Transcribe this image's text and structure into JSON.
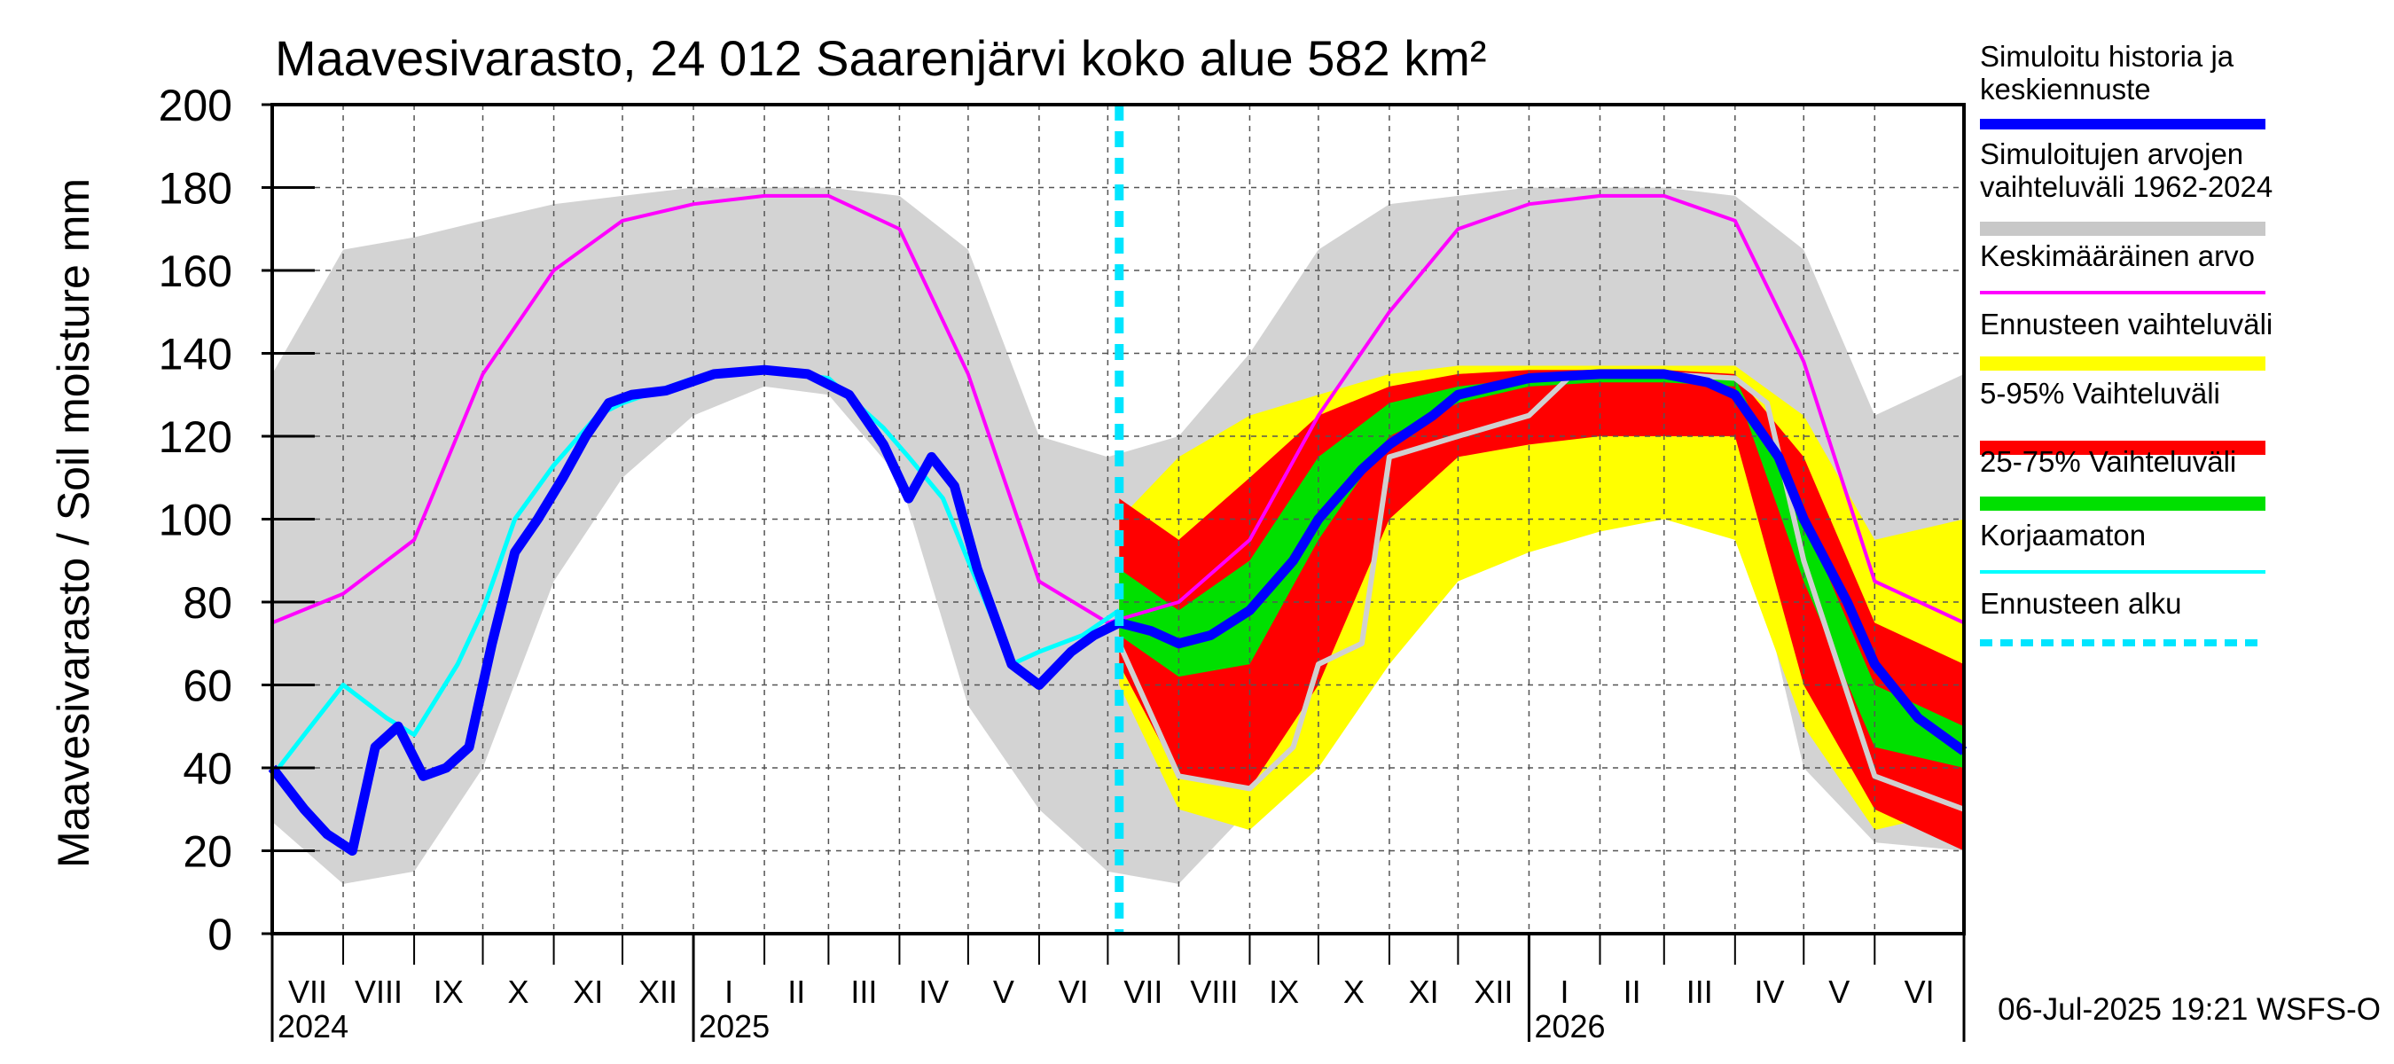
{
  "chart_data": {
    "type": "area",
    "title": "Maavesivarasto, 24 012 Saarenjärvi koko alue 582 km²",
    "ylabel": "Maavesivarasto / Soil moisture   mm",
    "xlabel": "",
    "ylim": [
      0,
      200
    ],
    "yticks": [
      0,
      20,
      40,
      60,
      80,
      100,
      120,
      140,
      160,
      180,
      200
    ],
    "x_range": [
      "2024-07-01",
      "2026-07-10"
    ],
    "grid": true,
    "legend_position": "right",
    "month_labels": [
      {
        "label": "VII",
        "date": "2024-07-01"
      },
      {
        "label": "VIII",
        "date": "2024-08-01"
      },
      {
        "label": "IX",
        "date": "2024-09-01"
      },
      {
        "label": "X",
        "date": "2024-10-01"
      },
      {
        "label": "XI",
        "date": "2024-11-01"
      },
      {
        "label": "XII",
        "date": "2024-12-01"
      },
      {
        "label": "I",
        "date": "2025-01-01"
      },
      {
        "label": "II",
        "date": "2025-02-01"
      },
      {
        "label": "III",
        "date": "2025-03-01"
      },
      {
        "label": "IV",
        "date": "2025-04-01"
      },
      {
        "label": "V",
        "date": "2025-05-01"
      },
      {
        "label": "VI",
        "date": "2025-06-01"
      },
      {
        "label": "VII",
        "date": "2025-07-01"
      },
      {
        "label": "VIII",
        "date": "2025-08-01"
      },
      {
        "label": "IX",
        "date": "2025-09-01"
      },
      {
        "label": "X",
        "date": "2025-10-01"
      },
      {
        "label": "XI",
        "date": "2025-11-01"
      },
      {
        "label": "XII",
        "date": "2025-12-01"
      },
      {
        "label": "I",
        "date": "2026-01-01"
      },
      {
        "label": "II",
        "date": "2026-02-01"
      },
      {
        "label": "III",
        "date": "2026-03-01"
      },
      {
        "label": "IV",
        "date": "2026-04-01"
      },
      {
        "label": "V",
        "date": "2026-05-01"
      },
      {
        "label": "VI",
        "date": "2026-06-01"
      }
    ],
    "year_labels": [
      {
        "label": "2024",
        "date": "2024-07-01"
      },
      {
        "label": "2025",
        "date": "2025-01-01"
      },
      {
        "label": "2026",
        "date": "2026-01-01"
      }
    ],
    "forecast_start": "2025-07-06",
    "footer": "06-Jul-2025 19:21 WSFS-O",
    "legend": [
      {
        "label": "Simuloitu historia ja\nkeskiennuste",
        "color": "#0000ff",
        "style": "line"
      },
      {
        "label": "Simuloitujen arvojen\nvaihteluväli 1962-2024",
        "color": "#c8c8c8",
        "style": "band"
      },
      {
        "label": "Keskimääräinen arvo",
        "color": "#ff00ff",
        "style": "line"
      },
      {
        "label": "Ennusteen vaihteluväli",
        "color": "#ffff00",
        "style": "band"
      },
      {
        "label": "5-95% Vaihteluväli",
        "color": "#ff0000",
        "style": "band"
      },
      {
        "label": "25-75% Vaihteluväli",
        "color": "#00e000",
        "style": "band"
      },
      {
        "label": "Korjaamaton",
        "color": "#00ffff",
        "style": "line"
      },
      {
        "label": "Ennusteen alku",
        "color": "#00e5ff",
        "style": "dashed"
      }
    ],
    "series": [
      {
        "name": "Simuloitujen arvojen vaihteluväli 1962-2024",
        "kind": "band",
        "color": "#d3d3d3",
        "x": [
          "2024-07-01",
          "2024-08-01",
          "2024-09-01",
          "2024-10-01",
          "2024-11-01",
          "2024-12-01",
          "2025-01-01",
          "2025-02-01",
          "2025-03-01",
          "2025-04-01",
          "2025-05-01",
          "2025-06-01",
          "2025-07-01",
          "2025-08-01",
          "2025-09-01",
          "2025-10-01",
          "2025-11-01",
          "2025-12-01",
          "2026-01-01",
          "2026-02-01",
          "2026-03-01",
          "2026-04-01",
          "2026-05-01",
          "2026-06-01",
          "2026-07-10"
        ],
        "low": [
          27,
          12,
          15,
          40,
          85,
          110,
          125,
          132,
          130,
          110,
          55,
          30,
          15,
          12,
          30,
          70,
          110,
          125,
          132,
          132,
          130,
          110,
          40,
          22,
          20
        ],
        "high": [
          135,
          165,
          168,
          172,
          176,
          178,
          180,
          180,
          180,
          178,
          165,
          120,
          115,
          120,
          140,
          165,
          176,
          178,
          180,
          180,
          180,
          178,
          165,
          125,
          135
        ]
      },
      {
        "name": "Ennusteen vaihteluväli",
        "kind": "band",
        "color": "#ffff00",
        "x": [
          "2025-07-06",
          "2025-08-01",
          "2025-09-01",
          "2025-10-01",
          "2025-11-01",
          "2025-12-01",
          "2026-01-01",
          "2026-02-01",
          "2026-03-01",
          "2026-04-01",
          "2026-05-01",
          "2026-06-01",
          "2026-07-10"
        ],
        "low": [
          60,
          30,
          25,
          40,
          65,
          85,
          92,
          97,
          100,
          95,
          50,
          25,
          30
        ],
        "high": [
          100,
          115,
          125,
          130,
          135,
          137,
          137,
          137,
          137,
          137,
          125,
          95,
          100
        ]
      },
      {
        "name": "5-95% Vaihteluväli",
        "kind": "band",
        "color": "#ff0000",
        "x": [
          "2025-07-06",
          "2025-08-01",
          "2025-09-01",
          "2025-10-01",
          "2025-11-01",
          "2025-12-01",
          "2026-01-01",
          "2026-02-01",
          "2026-03-01",
          "2026-04-01",
          "2026-05-01",
          "2026-06-01",
          "2026-07-10"
        ],
        "low": [
          65,
          38,
          35,
          60,
          100,
          115,
          118,
          120,
          120,
          120,
          60,
          30,
          20
        ],
        "high": [
          105,
          95,
          110,
          125,
          132,
          135,
          136,
          136,
          136,
          135,
          115,
          75,
          65
        ]
      },
      {
        "name": "25-75% Vaihteluväli",
        "kind": "band",
        "color": "#00e000",
        "x": [
          "2025-07-06",
          "2025-08-01",
          "2025-09-01",
          "2025-10-01",
          "2025-11-01",
          "2025-12-01",
          "2026-01-01",
          "2026-02-01",
          "2026-03-01",
          "2026-04-01",
          "2026-05-01",
          "2026-06-01",
          "2026-07-10"
        ],
        "low": [
          72,
          62,
          65,
          95,
          120,
          128,
          132,
          133,
          133,
          132,
          85,
          45,
          40
        ],
        "high": [
          88,
          78,
          90,
          115,
          128,
          132,
          134,
          135,
          135,
          134,
          100,
          60,
          50
        ]
      },
      {
        "name": "Keskimääräinen arvo",
        "kind": "line",
        "color": "#ff00ff",
        "x": [
          "2024-07-01",
          "2024-08-01",
          "2024-09-01",
          "2024-10-01",
          "2024-11-01",
          "2024-12-01",
          "2025-01-01",
          "2025-02-01",
          "2025-03-01",
          "2025-04-01",
          "2025-05-01",
          "2025-06-01",
          "2025-07-01",
          "2025-08-01",
          "2025-09-01",
          "2025-10-01",
          "2025-11-01",
          "2025-12-01",
          "2026-01-01",
          "2026-02-01",
          "2026-03-01",
          "2026-04-01",
          "2026-05-01",
          "2026-06-01",
          "2026-07-10"
        ],
        "y": [
          75,
          82,
          95,
          135,
          160,
          172,
          176,
          178,
          178,
          170,
          135,
          85,
          75,
          80,
          95,
          125,
          150,
          170,
          176,
          178,
          178,
          172,
          138,
          85,
          75
        ]
      },
      {
        "name": "Korjaamaton",
        "kind": "line",
        "color": "#00ffff",
        "x": [
          "2024-07-01",
          "2024-07-15",
          "2024-08-01",
          "2024-08-20",
          "2024-09-01",
          "2024-09-20",
          "2024-10-01",
          "2024-10-15",
          "2024-11-01",
          "2024-11-20",
          "2024-12-01",
          "2025-01-01",
          "2025-02-01",
          "2025-03-01",
          "2025-03-25",
          "2025-04-05",
          "2025-04-20",
          "2025-05-01",
          "2025-05-20",
          "2025-06-01",
          "2025-06-20",
          "2025-07-06"
        ],
        "y": [
          38,
          48,
          60,
          52,
          48,
          65,
          78,
          100,
          113,
          125,
          128,
          134,
          136,
          134,
          122,
          115,
          105,
          90,
          65,
          68,
          72,
          78
        ]
      },
      {
        "name": "Simuloitu historia ja keskiennuste",
        "kind": "line",
        "color": "#0000ff",
        "x": [
          "2024-07-01",
          "2024-07-15",
          "2024-07-25",
          "2024-08-05",
          "2024-08-15",
          "2024-08-25",
          "2024-09-05",
          "2024-09-15",
          "2024-09-25",
          "2024-10-05",
          "2024-10-15",
          "2024-10-25",
          "2024-11-05",
          "2024-11-15",
          "2024-11-25",
          "2024-12-05",
          "2024-12-20",
          "2025-01-10",
          "2025-02-01",
          "2025-02-20",
          "2025-03-10",
          "2025-03-25",
          "2025-04-05",
          "2025-04-15",
          "2025-04-25",
          "2025-05-05",
          "2025-05-20",
          "2025-06-01",
          "2025-06-15",
          "2025-06-25",
          "2025-07-06",
          "2025-07-20",
          "2025-08-01",
          "2025-08-15",
          "2025-09-01",
          "2025-09-20",
          "2025-10-01",
          "2025-10-20",
          "2025-11-01",
          "2025-11-20",
          "2025-12-01",
          "2026-01-01",
          "2026-02-01",
          "2026-03-01",
          "2026-03-20",
          "2026-04-01",
          "2026-04-20",
          "2026-05-01",
          "2026-05-20",
          "2026-06-01",
          "2026-06-20",
          "2026-07-10"
        ],
        "y": [
          40,
          30,
          24,
          20,
          45,
          50,
          38,
          40,
          45,
          70,
          92,
          100,
          110,
          120,
          128,
          130,
          131,
          135,
          136,
          135,
          130,
          118,
          105,
          115,
          108,
          88,
          65,
          60,
          68,
          72,
          75,
          73,
          70,
          72,
          78,
          90,
          100,
          112,
          118,
          125,
          130,
          134,
          135,
          135,
          133,
          130,
          115,
          100,
          80,
          65,
          52,
          44
        ]
      },
      {
        "name": "Ennusteen vaihteluväli (harmaa)",
        "kind": "line",
        "color": "#d0d0d0",
        "x": [
          "2025-07-06",
          "2025-08-01",
          "2025-09-01",
          "2025-09-20",
          "2025-10-01",
          "2025-10-20",
          "2025-11-01",
          "2025-12-01",
          "2026-01-01",
          "2026-01-20",
          "2026-02-01",
          "2026-03-01",
          "2026-04-01",
          "2026-04-15",
          "2026-05-01",
          "2026-06-01",
          "2026-07-10"
        ],
        "y": [
          70,
          38,
          35,
          45,
          65,
          70,
          115,
          120,
          125,
          135,
          135,
          135,
          134,
          128,
          90,
          38,
          30
        ]
      }
    ]
  }
}
